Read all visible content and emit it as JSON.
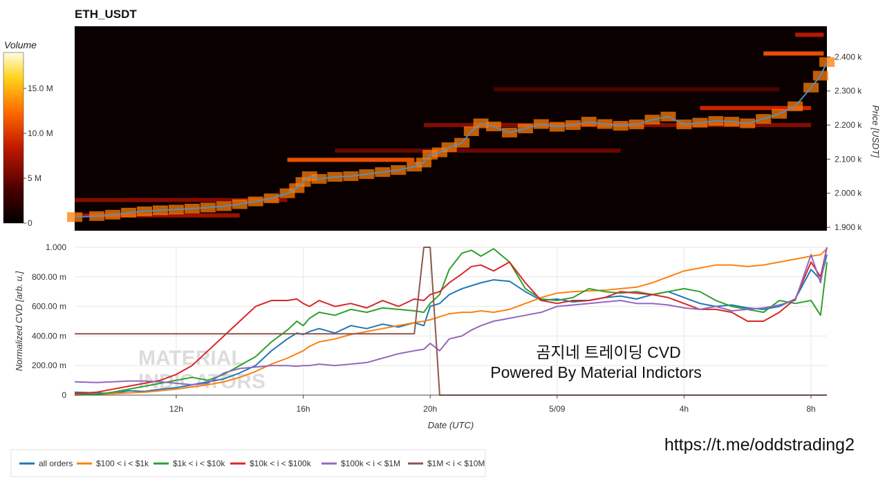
{
  "chart_data": [
    {
      "type": "heatmap",
      "title": "ETH_USDT",
      "ylabel": "Price [USDT]",
      "ylim": [
        1890,
        2490
      ],
      "y_ticks": [
        "1.900 k",
        "2.000 k",
        "2.100 k",
        "2.200 k",
        "2.300 k",
        "2.400 k"
      ],
      "y_tick_values": [
        1900,
        2000,
        2100,
        2200,
        2300,
        2400
      ],
      "colorbar": {
        "title": "Volume",
        "ticks": [
          "0",
          "5 M",
          "10.0 M",
          "15.0 M"
        ],
        "tick_values": [
          0,
          5,
          10,
          15
        ],
        "max": 19
      },
      "price_series": {
        "name": "price",
        "color": "#5b8db8",
        "x": [
          8.8,
          9.5,
          10,
          10.5,
          11,
          11.5,
          12,
          12.5,
          13,
          13.5,
          14,
          14.5,
          15,
          15.5,
          15.8,
          16,
          16.2,
          16.5,
          17,
          17.5,
          18,
          18.5,
          19,
          19.5,
          19.8,
          20,
          20.3,
          20.6,
          21,
          21.3,
          21.6,
          22,
          22.5,
          23,
          23.5,
          24,
          24.5,
          25,
          25.5,
          26,
          26.5,
          27,
          27.5,
          28,
          28.5,
          29,
          29.5,
          30,
          30.5,
          31,
          31.5,
          32,
          32.3,
          32.5
        ],
        "y": [
          1930,
          1933,
          1937,
          1943,
          1947,
          1950,
          1952,
          1955,
          1958,
          1962,
          1968,
          1976,
          1985,
          2000,
          2015,
          2033,
          2050,
          2042,
          2048,
          2050,
          2056,
          2062,
          2068,
          2078,
          2090,
          2113,
          2120,
          2135,
          2148,
          2182,
          2205,
          2196,
          2178,
          2190,
          2203,
          2195,
          2200,
          2210,
          2203,
          2198,
          2202,
          2216,
          2225,
          2202,
          2207,
          2212,
          2210,
          2205,
          2218,
          2233,
          2255,
          2310,
          2345,
          2385
        ]
      },
      "heat_bands": [
        {
          "price": 1935,
          "x_start": 8.8,
          "x_end": 14.0,
          "volume": 7
        },
        {
          "price": 1980,
          "x_start": 8.8,
          "x_end": 15.5,
          "volume": 6
        },
        {
          "price": 2098,
          "x_start": 15.5,
          "x_end": 19.5,
          "volume": 11
        },
        {
          "price": 2125,
          "x_start": 17.0,
          "x_end": 26.0,
          "volume": 5
        },
        {
          "price": 2200,
          "x_start": 19.8,
          "x_end": 32.0,
          "volume": 6
        },
        {
          "price": 2250,
          "x_start": 28.5,
          "x_end": 32.0,
          "volume": 9
        },
        {
          "price": 2305,
          "x_start": 22.0,
          "x_end": 31.0,
          "volume": 4
        },
        {
          "price": 2410,
          "x_start": 30.5,
          "x_end": 32.4,
          "volume": 11
        },
        {
          "price": 2465,
          "x_start": 31.5,
          "x_end": 32.4,
          "volume": 8
        }
      ]
    },
    {
      "type": "line",
      "xlabel": "Date (UTC)",
      "ylabel": "Normalized CVD [arb. u.]",
      "xlim": [
        8.8,
        32.5
      ],
      "ylim": [
        0,
        1000
      ],
      "x_ticks": [
        "12h",
        "16h",
        "20h",
        "5/09",
        "4h",
        "8h"
      ],
      "x_tick_values": [
        12,
        16,
        20,
        24,
        28,
        32
      ],
      "y_ticks": [
        "0",
        "200.00 m",
        "400.00 m",
        "600.00 m",
        "800.00 m",
        "1.000"
      ],
      "y_tick_values": [
        0,
        200,
        400,
        600,
        800,
        1000
      ],
      "x": [
        8.8,
        9.5,
        10,
        10.5,
        11,
        11.5,
        12,
        12.5,
        13,
        13.5,
        14,
        14.5,
        15,
        15.5,
        15.8,
        16,
        16.2,
        16.5,
        17,
        17.5,
        18,
        18.5,
        19,
        19.5,
        19.8,
        20,
        20.3,
        20.6,
        21,
        21.3,
        21.6,
        22,
        22.5,
        23,
        23.5,
        24,
        24.5,
        25,
        25.5,
        26,
        26.5,
        27,
        27.5,
        28,
        28.5,
        29,
        29.5,
        30,
        30.5,
        31,
        31.5,
        32,
        32.3,
        32.5
      ],
      "series": [
        {
          "name": "all orders",
          "color": "#1f77b4",
          "values": [
            20,
            15,
            10,
            30,
            25,
            40,
            50,
            70,
            90,
            110,
            150,
            200,
            300,
            380,
            420,
            410,
            430,
            450,
            420,
            470,
            450,
            480,
            460,
            490,
            470,
            600,
            620,
            680,
            720,
            740,
            760,
            780,
            770,
            700,
            640,
            650,
            630,
            640,
            660,
            670,
            650,
            680,
            700,
            660,
            620,
            600,
            610,
            590,
            580,
            600,
            650,
            850,
            780,
            950
          ]
        },
        {
          "name": "$100 < i < $1k",
          "color": "#ff7f0e",
          "values": [
            0,
            5,
            10,
            15,
            20,
            30,
            40,
            55,
            70,
            90,
            120,
            160,
            210,
            250,
            280,
            300,
            330,
            360,
            380,
            410,
            430,
            450,
            470,
            490,
            500,
            510,
            530,
            550,
            560,
            560,
            570,
            560,
            580,
            620,
            660,
            690,
            700,
            705,
            710,
            720,
            730,
            760,
            800,
            840,
            860,
            880,
            880,
            870,
            880,
            900,
            920,
            940,
            950,
            990
          ]
        },
        {
          "name": "$1k < i < $10k",
          "color": "#2ca02c",
          "values": [
            10,
            5,
            20,
            40,
            60,
            80,
            100,
            120,
            100,
            140,
            200,
            260,
            360,
            440,
            500,
            470,
            520,
            560,
            540,
            580,
            560,
            590,
            580,
            570,
            560,
            620,
            680,
            850,
            960,
            980,
            940,
            990,
            900,
            720,
            650,
            640,
            660,
            720,
            700,
            690,
            700,
            680,
            700,
            720,
            700,
            640,
            600,
            580,
            560,
            640,
            620,
            640,
            540,
            900
          ]
        },
        {
          "name": "$10k < i < $100k",
          "color": "#d62728",
          "values": [
            10,
            20,
            40,
            60,
            80,
            100,
            140,
            200,
            300,
            400,
            500,
            600,
            640,
            640,
            650,
            620,
            600,
            640,
            600,
            620,
            590,
            640,
            600,
            650,
            640,
            680,
            700,
            760,
            820,
            870,
            880,
            840,
            900,
            760,
            640,
            620,
            640,
            640,
            660,
            700,
            690,
            680,
            660,
            620,
            580,
            580,
            560,
            500,
            500,
            560,
            650,
            900,
            800,
            1000
          ]
        },
        {
          "name": "$100k < i < $1M",
          "color": "#9467bd",
          "values": [
            90,
            85,
            90,
            95,
            95,
            90,
            80,
            70,
            80,
            150,
            180,
            190,
            200,
            200,
            195,
            200,
            200,
            210,
            200,
            210,
            220,
            250,
            280,
            300,
            310,
            350,
            300,
            380,
            400,
            440,
            470,
            500,
            520,
            540,
            560,
            600,
            610,
            620,
            630,
            640,
            620,
            620,
            610,
            590,
            580,
            600,
            570,
            580,
            590,
            610,
            640,
            950,
            760,
            1000
          ]
        },
        {
          "name": "$1M < i < $10M",
          "color": "#8c564b",
          "values": [
            415,
            415,
            415,
            415,
            415,
            415,
            415,
            415,
            415,
            415,
            415,
            415,
            415,
            415,
            415,
            415,
            415,
            415,
            415,
            415,
            415,
            415,
            415,
            415,
            1000,
            1000,
            0,
            0,
            0,
            0,
            0,
            0,
            0,
            0,
            0,
            0,
            0,
            0,
            0,
            0,
            0,
            0,
            0,
            0,
            0,
            0,
            0,
            0,
            0,
            0,
            0,
            0,
            0,
            0
          ]
        }
      ]
    }
  ],
  "overlay": {
    "korean_title": "곰지네 트레이딩 CVD",
    "powered_by": "Powered By Material Indictors",
    "url": "https://t.me/oddstrading2",
    "watermark_line1": "MATERIAL",
    "watermark_line2": "INDICATORS"
  },
  "colors": {
    "heat_background": "#0a0000",
    "plot_background": "#ffffff",
    "grid": "#e6e6e6"
  }
}
